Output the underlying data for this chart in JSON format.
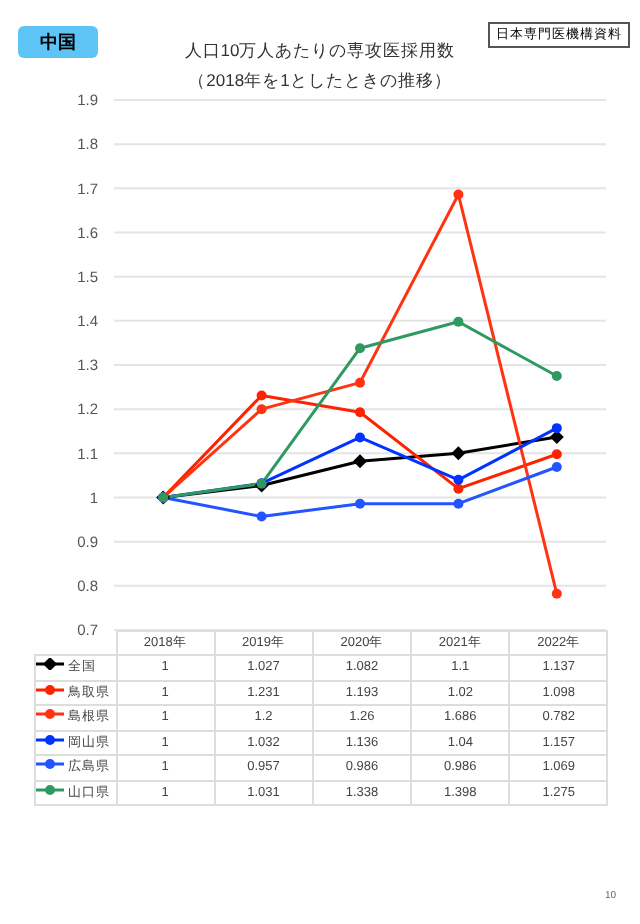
{
  "chart_data": {
    "type": "line",
    "title": "人口10万人あたりの専攻医採用数",
    "subtitle": "（2018年を1としたときの推移）",
    "annotations": [
      "中国",
      "日本専門医機構資料",
      "10"
    ],
    "categories": [
      "2018年",
      "2019年",
      "2020年",
      "2021年",
      "2022年"
    ],
    "series": [
      {
        "name": "全国",
        "color": "#000000",
        "marker": "diamond",
        "values": [
          1,
          1.027,
          1.082,
          1.1,
          1.137
        ]
      },
      {
        "name": "鳥取県",
        "color": "#ff2200",
        "marker": "circle",
        "values": [
          1,
          1.231,
          1.193,
          1.02,
          1.098
        ]
      },
      {
        "name": "島根県",
        "color": "#ff3311",
        "marker": "circle",
        "values": [
          1,
          1.2,
          1.26,
          1.686,
          0.782
        ]
      },
      {
        "name": "岡山県",
        "color": "#0033ff",
        "marker": "circle",
        "values": [
          1,
          1.032,
          1.136,
          1.04,
          1.157
        ]
      },
      {
        "name": "広島県",
        "color": "#2255ff",
        "marker": "circle",
        "values": [
          1,
          0.957,
          0.986,
          0.986,
          1.069
        ]
      },
      {
        "name": "山口県",
        "color": "#2e9960",
        "marker": "circle",
        "values": [
          1,
          1.031,
          1.338,
          1.398,
          1.275
        ]
      }
    ],
    "ylim": [
      0.7,
      1.9
    ],
    "yticks": [
      0.7,
      0.8,
      0.9,
      1,
      1.1,
      1.2,
      1.3,
      1.4,
      1.5,
      1.6,
      1.7,
      1.8,
      1.9
    ],
    "grid": "y",
    "legend": "bottom",
    "data_labels": true
  }
}
